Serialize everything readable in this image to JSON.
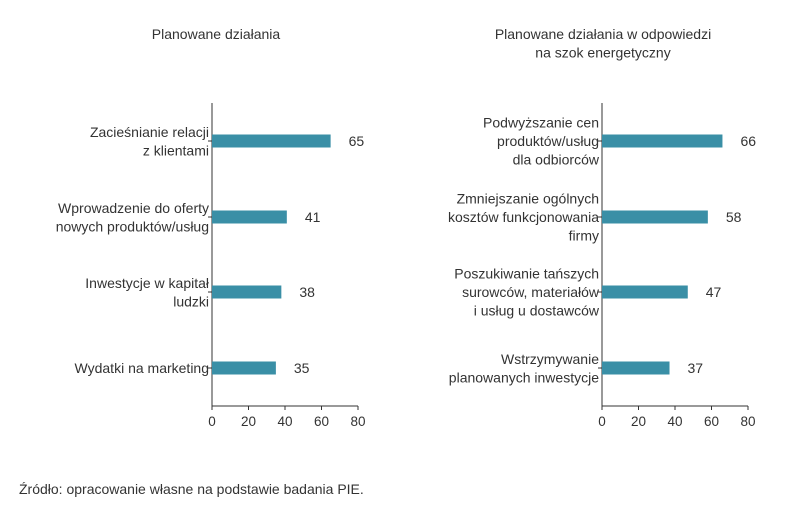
{
  "chart_data": [
    {
      "type": "bar",
      "orientation": "horizontal",
      "title": "Planowane działania",
      "categories": [
        "Zacieśnianie relacji\nz klientami",
        "Wprowadzenie do oferty\nnowych produktów/usług",
        "Inwestycje w kapitał\nludzki",
        "Wydatki na marketing"
      ],
      "values": [
        65,
        41,
        38,
        35
      ],
      "xlim": [
        0,
        80
      ],
      "xticks": [
        0,
        20,
        40,
        60,
        80
      ],
      "data_labels": true,
      "grid": false,
      "color": "#3a8fa6"
    },
    {
      "type": "bar",
      "orientation": "horizontal",
      "title": "Planowane działania w odpowiedzi\nna szok energetyczny",
      "categories": [
        "Podwyższanie cen\nproduktów/usług\ndla odbiorców",
        "Zmniejszanie ogólnych\nkosztów funkcjonowania\nfirmy",
        "Poszukiwanie tańszych\nsurowców, materiałów\ni usług u dostawców",
        "Wstrzymywanie\nplanowanych inwestycje"
      ],
      "values": [
        66,
        58,
        47,
        37
      ],
      "xlim": [
        0,
        80
      ],
      "xticks": [
        0,
        20,
        40,
        60,
        80
      ],
      "data_labels": true,
      "grid": false,
      "color": "#3a8fa6"
    }
  ],
  "source": "Źródło: opracowanie własne na podstawie badania PIE."
}
